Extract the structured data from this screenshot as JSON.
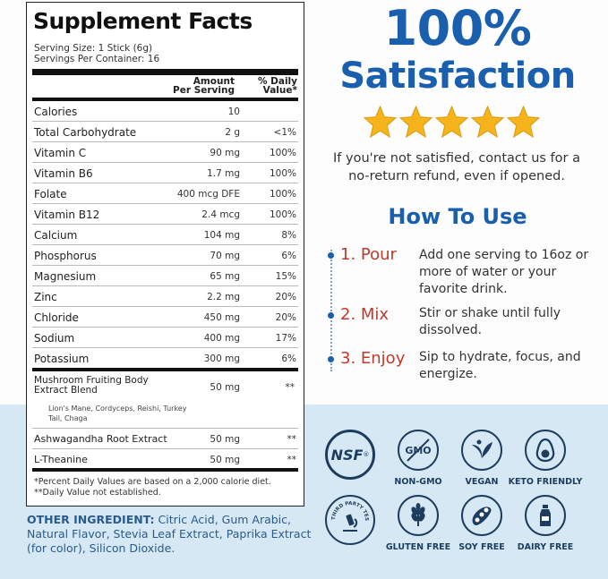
{
  "facts": {
    "title": "Supplement Facts",
    "serving_size": "Serving Size: 1 Stick (6g)",
    "servings_per": "Servings Per Container: 16",
    "hdr_amount_1": "Amount",
    "hdr_amount_2": "Per Serving",
    "hdr_dv_1": "% Daily",
    "hdr_dv_2": "Value*",
    "rows": [
      {
        "name": "Calories",
        "amount": "10",
        "dv": ""
      },
      {
        "name": "Total Carbohydrate",
        "amount": "2 g",
        "dv": "<1%"
      },
      {
        "name": "Vitamin C",
        "amount": "90 mg",
        "dv": "100%"
      },
      {
        "name": "Vitamin B6",
        "amount": "1.7 mg",
        "dv": "100%"
      },
      {
        "name": "Folate",
        "amount": "400 mcg DFE",
        "dv": "100%"
      },
      {
        "name": "Vitamin B12",
        "amount": "2.4 mcg",
        "dv": "100%"
      },
      {
        "name": "Calcium",
        "amount": "104 mg",
        "dv": "8%"
      },
      {
        "name": "Phosphorus",
        "amount": "70 mg",
        "dv": "6%"
      },
      {
        "name": "Magnesium",
        "amount": "65 mg",
        "dv": "15%"
      },
      {
        "name": "Zinc",
        "amount": "2.2 mg",
        "dv": "20%"
      },
      {
        "name": "Chloride",
        "amount": "450 mg",
        "dv": "20%"
      },
      {
        "name": "Sodium",
        "amount": "400 mg",
        "dv": "17%"
      },
      {
        "name": "Potassium",
        "amount": "300 mg",
        "dv": "6%"
      }
    ],
    "blend_name": "Mushroom Fruiting Body Extract Blend",
    "blend_amount": "50 mg",
    "blend_dv": "**",
    "blend_sub": "Lion's Mane, Cordyceps, Reishi, Turkey Tail, Chaga",
    "ash_name": "Ashwagandha Root Extract",
    "ash_amount": "50 mg",
    "ash_dv": "**",
    "the_name": "L-Theanine",
    "the_amount": "50 mg",
    "the_dv": "**",
    "foot1": "*Percent Daily Values are based on a 2,000 calorie diet.",
    "foot2": "**Daily Value not established."
  },
  "other": {
    "label": "OTHER INGREDIENT:",
    "text": " Citric Acid, Gum Arabic, Natural Flavor, Stevia Leaf Extract, Paprika Extract (for color), Silicon Dioxide."
  },
  "satisfaction": {
    "line1": "100%",
    "line2": "Satisfaction",
    "text": "If you're not satisfied, contact us for a no-return refund, even if opened."
  },
  "how_to": {
    "title": "How To Use",
    "steps": [
      {
        "label": "1. Pour",
        "text": "Add one serving to 16oz or more of water or your favorite drink."
      },
      {
        "label": "2. Mix",
        "text": "Stir or shake until fully dissolved."
      },
      {
        "label": "3. Enjoy",
        "text": "Sip to hydrate, focus, and energize."
      }
    ]
  },
  "badges": {
    "nsf": "NSF",
    "nsf_reg": "®",
    "nongmo_inner": "GMO",
    "nongmo": "NON-GMO",
    "vegan": "VEGAN",
    "keto": "KETO FRIENDLY",
    "third_party": "THIRD PARTY TESTED",
    "gluten": "GLUTEN FREE",
    "soy": "SOY FREE",
    "dairy": "DAIRY FREE"
  },
  "colors": {
    "brand_blue": "#1a5fae",
    "step_red": "#c0392b",
    "badge_navy": "#1d3c5e",
    "band": "#d5e8f4",
    "star": "#f5b41c"
  },
  "stars": {
    "rating": 5,
    "max": 5
  }
}
